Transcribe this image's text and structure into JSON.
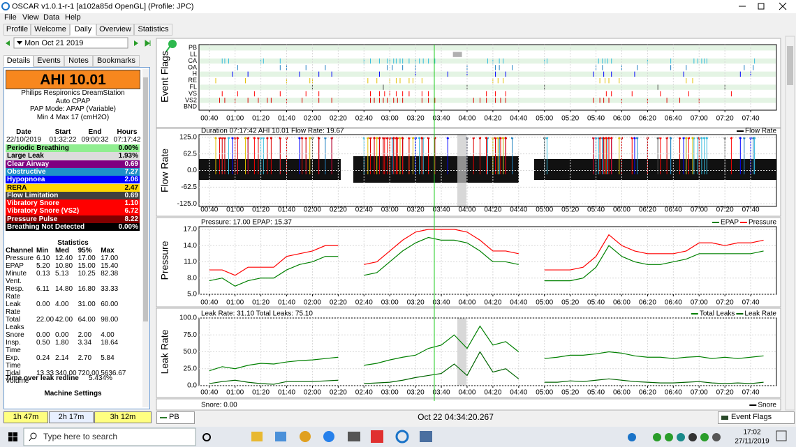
{
  "window": {
    "title": "OSCAR v1.0.1-r-1 [a102a85d OpenGL] (Profile: JPC)"
  },
  "menu": [
    "File",
    "View",
    "Data",
    "Help"
  ],
  "tabs": [
    "Profile",
    "Welcome",
    "Daily",
    "Overview",
    "Statistics"
  ],
  "date": "Mon Oct 21 2019",
  "detail_tabs": [
    "Details",
    "Events",
    "Notes",
    "Bookmarks"
  ],
  "summary": {
    "ahi": "AHI 10.01",
    "lines": [
      "Philips Respironics DreamStation",
      "Auto CPAP",
      "PAP Mode: APAP (Variable)",
      "Min 4 Max 17 (cmH2O)"
    ]
  },
  "session": {
    "headers": [
      "Date",
      "Start",
      "End",
      "Hours"
    ],
    "values": [
      "22/10/2019",
      "01:32:22",
      "09:00:32",
      "07:17:42"
    ]
  },
  "indices": [
    {
      "name": "Periodic Breathing",
      "value": "0.00%",
      "color": "#90ee90",
      "text_color": "#000000"
    },
    {
      "name": "Large Leak",
      "value": "1.93%",
      "color": "#dcdcdc",
      "text_color": "#000000"
    },
    {
      "name": "Clear Airway",
      "value": "0.69",
      "color": "#800080",
      "text_color": "#ffffff"
    },
    {
      "name": "Obstructive",
      "value": "7.27",
      "color": "#1e90c8",
      "text_color": "#ffffff"
    },
    {
      "name": "Hypopnoea",
      "value": "2.06",
      "color": "#0000ff",
      "text_color": "#ffffff"
    },
    {
      "name": "RERA",
      "value": "2.47",
      "color": "#ffd700",
      "text_color": "#000000"
    },
    {
      "name": "Flow Limitation",
      "value": "0.69",
      "color": "#404040",
      "text_color": "#ffffff"
    },
    {
      "name": "Vibratory Snore",
      "value": "1.10",
      "color": "#ff0000",
      "text_color": "#ffffff"
    },
    {
      "name": "Vibratory Snore (VS2)",
      "value": "6.72",
      "color": "#ff0000",
      "text_color": "#ffffff"
    },
    {
      "name": "Pressure Pulse",
      "value": "8.22",
      "color": "#800000",
      "text_color": "#ffffff"
    },
    {
      "name": "Breathing Not Detected",
      "value": "0.00%",
      "color": "#000000",
      "text_color": "#ffffff"
    }
  ],
  "statistics": {
    "title": "Statistics",
    "headers": [
      "Channel",
      "Min",
      "Med",
      "95%",
      "Max"
    ],
    "rows": [
      [
        "Pressure",
        "6.10",
        "12.40",
        "17.00",
        "17.00"
      ],
      [
        "EPAP",
        "5.20",
        "10.80",
        "15.00",
        "15.40"
      ],
      [
        "Minute Vent.",
        "0.13",
        "5.13",
        "10.25",
        "82.38"
      ],
      [
        "Resp. Rate",
        "6.11",
        "14.80",
        "16.80",
        "33.33"
      ],
      [
        "Leak Rate",
        "0.00",
        "4.00",
        "31.00",
        "60.00"
      ],
      [
        "Total Leaks",
        "22.00",
        "42.00",
        "64.00",
        "98.00"
      ],
      [
        "Snore",
        "0.00",
        "0.00",
        "2.00",
        "4.00"
      ],
      [
        "Insp. Time",
        "0.50",
        "1.80",
        "3.34",
        "18.64"
      ],
      [
        "Exp. Time",
        "0.24",
        "2.14",
        "2.70",
        "5.84"
      ],
      [
        "Tidal Volume",
        "13.33",
        "340.00",
        "720.00",
        "5636.67"
      ]
    ]
  },
  "leak_redline": {
    "label": "Time over leak redline",
    "value": "5.434%"
  },
  "machine_settings": "Machine Settings",
  "durations": [
    "1h 47m",
    "2h 17m",
    "3h 12m"
  ],
  "graphs": {
    "xlim": [
      32,
      480
    ],
    "xticks": [
      {
        "value": 40,
        "label": "00:40"
      },
      {
        "value": 60,
        "label": "01:00"
      },
      {
        "value": 80,
        "label": "01:20"
      },
      {
        "value": 100,
        "label": "01:40"
      },
      {
        "value": 120,
        "label": "02:00"
      },
      {
        "value": 140,
        "label": "02:20"
      },
      {
        "value": 160,
        "label": "02:40"
      },
      {
        "value": 180,
        "label": "03:00"
      },
      {
        "value": 200,
        "label": "03:20"
      },
      {
        "value": 220,
        "label": "03:40"
      },
      {
        "value": 240,
        "label": "04:00"
      },
      {
        "value": 260,
        "label": "04:20"
      },
      {
        "value": 280,
        "label": "04:40"
      },
      {
        "value": 300,
        "label": "05:00"
      },
      {
        "value": 320,
        "label": "05:20"
      },
      {
        "value": 340,
        "label": "05:40"
      },
      {
        "value": 360,
        "label": "06:00"
      },
      {
        "value": 380,
        "label": "06:20"
      },
      {
        "value": 400,
        "label": "06:40"
      },
      {
        "value": 420,
        "label": "07:00"
      },
      {
        "value": 440,
        "label": "07:20"
      },
      {
        "value": 460,
        "label": "07:40"
      }
    ],
    "flags": {
      "label": "Event Flags",
      "rows": [
        {
          "name": "PB",
          "color": "#a0a0a0",
          "times": []
        },
        {
          "name": "LL",
          "color": "#b0b0b0",
          "times": [],
          "spans": [
            [
              229,
              236
            ]
          ]
        },
        {
          "name": "CA",
          "color": "#33bbdd",
          "times": [
            50,
            52,
            55,
            80,
            82,
            95,
            160,
            165,
            172,
            178,
            180,
            183,
            185,
            188,
            190,
            195,
            200,
            203,
            206,
            210,
            215,
            256,
            260,
            265,
            268,
            300,
            302,
            342,
            345,
            347,
            349,
            352,
            380,
            398,
            416,
            419,
            422,
            424,
            426,
            463
          ]
        },
        {
          "name": "OA",
          "color": "#2080c0",
          "times": [
            62,
            95,
            100,
            115,
            130,
            178,
            182,
            190,
            200,
            240,
            262,
            265,
            275,
            340,
            345,
            360,
            372,
            398,
            410,
            455,
            462
          ]
        },
        {
          "name": "H",
          "color": "#0000ff",
          "times": [
            58,
            70,
            110,
            125,
            135,
            172,
            200,
            225,
            240,
            262,
            270,
            338,
            346,
            352,
            370,
            408,
            452,
            460
          ]
        },
        {
          "name": "RE",
          "color": "#e0c000",
          "times": [
            45,
            68,
            100,
            118,
            120,
            163,
            170,
            180,
            185,
            188,
            195,
            198,
            205,
            260,
            264,
            268,
            343,
            347,
            350,
            358,
            410,
            415
          ]
        },
        {
          "name": "FL",
          "color": "#505050",
          "times": [
            120,
            175,
            240,
            300,
            388,
            440
          ]
        },
        {
          "name": "VS",
          "color": "#ff0000",
          "times": [
            50,
            62,
            75,
            95,
            115,
            125,
            165,
            172,
            176,
            180,
            185,
            190,
            195,
            205,
            210,
            255,
            262,
            270,
            348,
            352,
            368,
            390,
            412,
            445
          ]
        },
        {
          "name": "VS2",
          "color": "#dd0000",
          "times": [
            48,
            52,
            60,
            70,
            78,
            85,
            88,
            100,
            112,
            125,
            135,
            165,
            168,
            172,
            175,
            178,
            183,
            186,
            190,
            205,
            210,
            215,
            245,
            250,
            255,
            262,
            266,
            270,
            338,
            343,
            346,
            350,
            360,
            380,
            395,
            405,
            420
          ]
        },
        {
          "name": "BND",
          "color": "#404040",
          "times": []
        }
      ]
    },
    "flow": {
      "label": "Flow Rate",
      "header": "Duration 07:17:42 AHI 10.01 Flow Rate: 19.67",
      "legend": "Flow Rate",
      "ylim": [
        -135,
        135
      ],
      "yticks": [
        {
          "value": 125,
          "label": "125.0"
        },
        {
          "value": 62.5,
          "label": "62.5"
        },
        {
          "value": 0,
          "label": "0.0"
        },
        {
          "value": -62.5,
          "label": "-62.5"
        },
        {
          "value": -125,
          "label": "-125.0"
        }
      ]
    },
    "pressure": {
      "label": "Pressure",
      "header": "Pressure: 17.00 EPAP: 15.37",
      "ylim": [
        5,
        17.5
      ],
      "yticks": [
        {
          "value": 17,
          "label": "17.0"
        },
        {
          "value": 14,
          "label": "14.0"
        },
        {
          "value": 11,
          "label": "11.0"
        },
        {
          "value": 8,
          "label": "8.0"
        },
        {
          "value": 5,
          "label": "5.0"
        }
      ],
      "x": [
        40,
        50,
        60,
        70,
        80,
        90,
        100,
        110,
        120,
        130,
        140,
        150,
        160,
        170,
        180,
        190,
        200,
        210,
        220,
        230,
        240,
        250,
        260,
        270,
        280,
        290,
        300,
        310,
        320,
        330,
        340,
        350,
        360,
        370,
        380,
        390,
        400,
        410,
        420,
        430,
        440,
        450,
        460,
        470
      ],
      "series": [
        {
          "name": "EPAP",
          "color": "#008000",
          "values": [
            7.5,
            8,
            6.5,
            7.5,
            8,
            8,
            9.5,
            10.5,
            11,
            12,
            12,
            null,
            8.5,
            9,
            11,
            13,
            14.5,
            15.5,
            15,
            15,
            14.5,
            13,
            11,
            11,
            10.5,
            null,
            7.5,
            7.5,
            7.5,
            8,
            10,
            14,
            12,
            11,
            10.5,
            10.5,
            11,
            11.5,
            12.5,
            12.5,
            12.5,
            12.5,
            12.5,
            13
          ]
        },
        {
          "name": "Pressure",
          "color": "#ff0000",
          "values": [
            9.5,
            9.5,
            8.5,
            10,
            10,
            10,
            12,
            12.5,
            13,
            14,
            14,
            null,
            10.5,
            11,
            13,
            15,
            16.5,
            17,
            17,
            17,
            16.5,
            15,
            13,
            13,
            12.5,
            null,
            9.5,
            9.5,
            9.5,
            10,
            12,
            16,
            14,
            13,
            12.5,
            12.5,
            12.5,
            13,
            14.5,
            14.5,
            14,
            14.5,
            14.5,
            15
          ]
        }
      ]
    },
    "leak": {
      "label": "Leak Rate",
      "header": "Leak Rate: 31.10 Total Leaks: 75.10",
      "ylim": [
        0,
        100
      ],
      "yticks": [
        {
          "value": 100,
          "label": "100.0"
        },
        {
          "value": 75,
          "label": "75.0"
        },
        {
          "value": 50,
          "label": "50.0"
        },
        {
          "value": 25,
          "label": "25.0"
        },
        {
          "value": 0,
          "label": "0.0"
        }
      ],
      "x": [
        40,
        50,
        60,
        70,
        80,
        90,
        100,
        110,
        120,
        130,
        140,
        150,
        160,
        170,
        180,
        190,
        200,
        210,
        220,
        230,
        240,
        250,
        260,
        270,
        280,
        290,
        300,
        310,
        320,
        330,
        340,
        350,
        360,
        370,
        380,
        390,
        400,
        410,
        420,
        430,
        440,
        450,
        460,
        470
      ],
      "series": [
        {
          "name": "Total Leaks",
          "color": "#008000",
          "values": [
            22,
            28,
            25,
            30,
            33,
            32,
            35,
            37,
            38,
            40,
            42,
            null,
            30,
            33,
            38,
            42,
            45,
            55,
            60,
            75,
            55,
            88,
            60,
            65,
            50,
            null,
            40,
            42,
            45,
            45,
            47,
            50,
            48,
            44,
            42,
            42,
            40,
            42,
            43,
            40,
            42,
            40,
            42,
            44
          ]
        },
        {
          "name": "Leak Rate",
          "color": "#006400",
          "values": [
            3,
            6,
            8,
            5,
            3,
            2,
            6,
            6,
            6,
            7,
            8,
            null,
            3,
            4,
            5,
            8,
            12,
            15,
            18,
            32,
            15,
            50,
            20,
            25,
            10,
            null,
            5,
            5,
            7,
            6,
            8,
            10,
            8,
            6,
            5,
            4,
            4,
            5,
            6,
            4,
            3,
            4,
            3,
            5
          ]
        }
      ]
    },
    "snore": {
      "header": "Snore: 0.00",
      "legend": "Snore"
    }
  },
  "status": {
    "channel": "PB",
    "timestamp": "Oct 22 04:34:20.267",
    "menu": "Event Flags"
  },
  "taskbar": {
    "search": "Type here to search",
    "time": "17:02",
    "date": "27/11/2019"
  }
}
